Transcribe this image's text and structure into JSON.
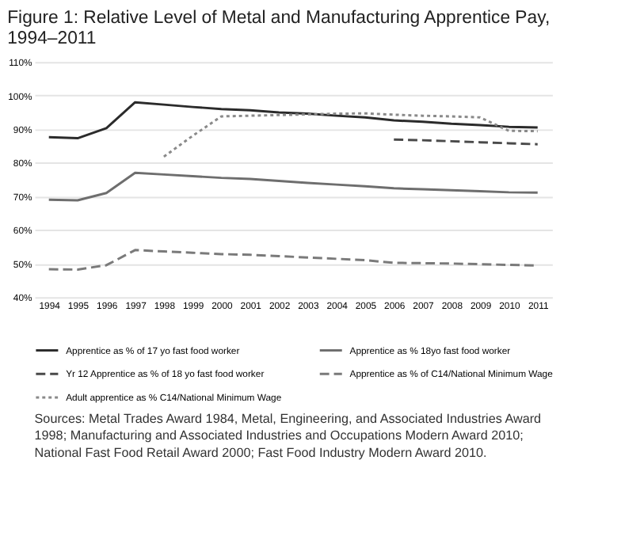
{
  "chart_data": {
    "type": "line",
    "title": "Figure 1: Relative Level of Metal and Manufacturing Apprentice Pay, 1994–2011",
    "categories": [
      "1994",
      "1995",
      "1996",
      "1997",
      "1998",
      "1999",
      "2000",
      "2001",
      "2002",
      "2003",
      "2004",
      "2005",
      "2006",
      "2007",
      "2008",
      "2009",
      "2010",
      "2011"
    ],
    "series": [
      {
        "name": "Apprentice as % of 17 yo fast food worker",
        "color": "#2b2b2b",
        "line_style": "solid",
        "values": [
          87.6,
          87.3,
          90.3,
          98,
          97.3,
          96.6,
          96,
          95.6,
          95,
          94.6,
          94,
          93.5,
          92.6,
          92.2,
          91.6,
          91.2,
          90.7,
          90.5
        ]
      },
      {
        "name": "Apprentice as % 18yo fast food worker",
        "color": "#6e6e6e",
        "line_style": "solid",
        "values": [
          69,
          68.8,
          71,
          77,
          76.5,
          76,
          75.5,
          75.2,
          74.6,
          74,
          73.5,
          73,
          72.4,
          72.1,
          71.8,
          71.5,
          71.2,
          71.1
        ]
      },
      {
        "name": "Yr 12 Apprentice as % of 18 yo fast food worker",
        "color": "#4a4a4a",
        "line_style": "dashed",
        "values": [
          null,
          null,
          null,
          null,
          null,
          null,
          null,
          null,
          null,
          null,
          null,
          null,
          86.9,
          86.7,
          86.4,
          86.1,
          85.8,
          85.5
        ]
      },
      {
        "name": "Apprentice as % of C14/National Minimum Wage",
        "color": "#7a7a7a",
        "line_style": "dashed",
        "values": [
          48.3,
          48.2,
          49.5,
          54,
          53.6,
          53.2,
          52.8,
          52.6,
          52.2,
          51.8,
          51.4,
          51,
          50.2,
          50.1,
          50,
          49.8,
          49.6,
          49.4
        ]
      },
      {
        "name": "Adult apprentice as % C14/National Minimum Wage",
        "color": "#8a8a8a",
        "line_style": "dotted",
        "values": [
          null,
          null,
          null,
          null,
          81.8,
          88,
          93.8,
          94,
          94.2,
          94.4,
          94.6,
          94.7,
          94.3,
          94,
          93.8,
          93.5,
          89.5,
          89.4
        ]
      }
    ],
    "ylim": [
      40,
      110
    ],
    "yticks": [
      {
        "value": 40,
        "label": "40%"
      },
      {
        "value": 50,
        "label": "50%"
      },
      {
        "value": 60,
        "label": "60%"
      },
      {
        "value": 70,
        "label": "70%"
      },
      {
        "value": 80,
        "label": "80%"
      },
      {
        "value": 90,
        "label": "90%"
      },
      {
        "value": 100,
        "label": "100%"
      },
      {
        "value": 110,
        "label": "110%"
      }
    ],
    "grid": "y",
    "legend": "bottom",
    "annotations": [
      "Sources: Metal Trades Award 1984, Metal, Engineering, and Associated Industries Award 1998; Manufacturing and Associated Industries and Occupations Modern Award 2010; National Fast Food Retail Award 2000; Fast Food Industry Modern Award 2010."
    ]
  }
}
